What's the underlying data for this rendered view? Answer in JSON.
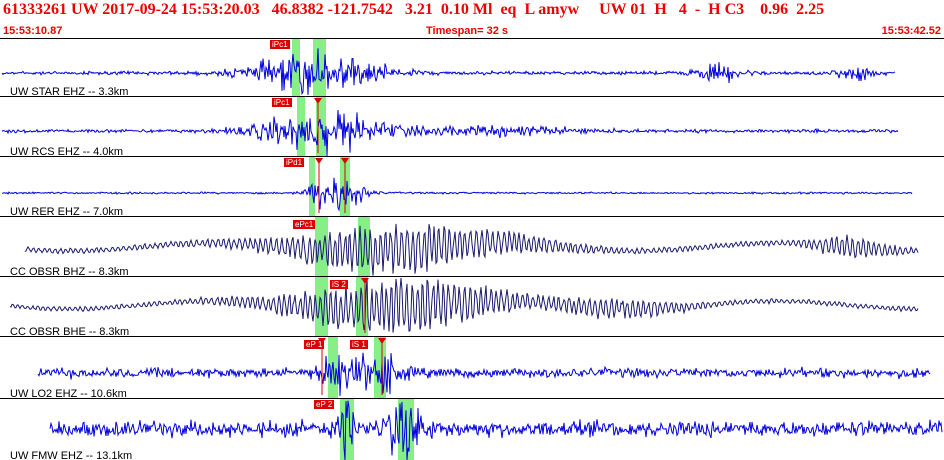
{
  "header": {
    "title": "61333261 UW 2017-09-24 15:53:20.03   46.8382 -121.7542   3.21  0.10 Ml  eq  L amyw     UW 01  H   4  -  H C3    0.96  2.25",
    "start_time": "15:53:10.87",
    "timespan": "Timespan=  32 s",
    "end_time": "15:53:42.52"
  },
  "colors": {
    "header_text": "#ee0000",
    "trace_blue": "#0000dd",
    "trace_navy": "#1a1a6e",
    "pick_band": "#88ee88",
    "pick_marker": "#dd0000"
  },
  "traces": [
    {
      "label": "UW STAR EHZ -- 3.3km",
      "color": "blue",
      "picks": [
        {
          "tag": "iPc1"
        }
      ]
    },
    {
      "label": "UW RCS EHZ -- 4.0km",
      "color": "blue",
      "picks": [
        {
          "tag": "iPc1"
        }
      ]
    },
    {
      "label": "UW RER EHZ -- 7.0km",
      "color": "blue",
      "picks": [
        {
          "tag": "iPd1"
        }
      ]
    },
    {
      "label": "CC OBSR BHZ -- 8.3km",
      "color": "navy",
      "picks": [
        {
          "tag": "ePc1"
        }
      ]
    },
    {
      "label": "CC OBSR BHE -- 8.3km",
      "color": "navy",
      "picks": [
        {
          "tag": "iS 2"
        }
      ]
    },
    {
      "label": "UW LO2 EHZ -- 10.6km",
      "color": "blue",
      "picks": [
        {
          "tag": "eP 1"
        },
        {
          "tag": "iS 1"
        }
      ]
    },
    {
      "label": "UW FMW EHZ -- 13.1km",
      "color": "blue",
      "picks": [
        {
          "tag": "eP 2"
        }
      ]
    }
  ]
}
